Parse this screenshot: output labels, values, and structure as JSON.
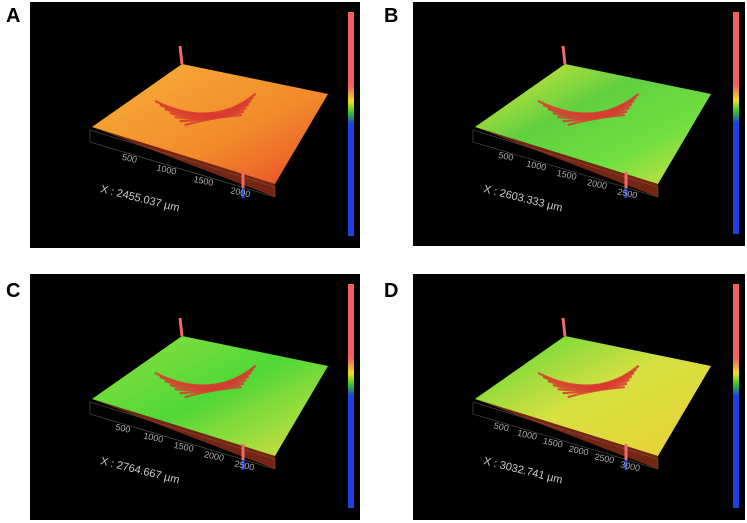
{
  "panels": [
    {
      "label": "A",
      "x_axis_label": "X : 2455.037 µm",
      "ticks": [
        500,
        1000,
        1500,
        2000
      ]
    },
    {
      "label": "B",
      "x_axis_label": "X : 2603.333 µm",
      "ticks": [
        500,
        1000,
        1500,
        2000,
        2500
      ]
    },
    {
      "label": "C",
      "x_axis_label": "X : 2764.667 µm",
      "ticks": [
        500,
        1000,
        1500,
        2000,
        2500
      ]
    },
    {
      "label": "D",
      "x_axis_label": "X : 3032.741 µm",
      "ticks": [
        500,
        1000,
        1500,
        2000,
        2500,
        3000
      ]
    }
  ]
}
